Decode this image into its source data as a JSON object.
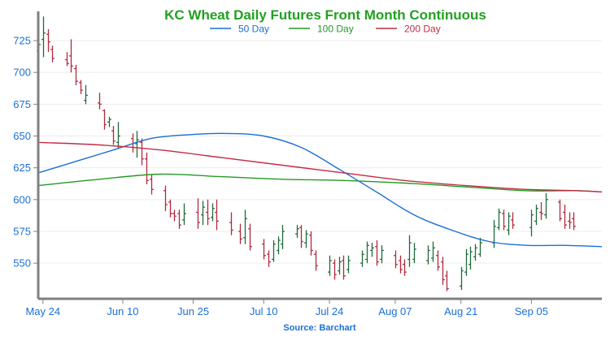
{
  "chart_data": {
    "type": "ohlc-line",
    "title": "KC Wheat Daily Futures Front Month Continuous",
    "source": "Source: Barchart",
    "title_color": "#22a022",
    "source_color": "#1a6fd6",
    "axis_label_color": "#1a6fd6",
    "up_color": "#1f6b3a",
    "down_color": "#b2283c",
    "ylim": [
      522,
      748
    ],
    "yticks": [
      550,
      575,
      600,
      625,
      650,
      675,
      700,
      725
    ],
    "x_range": [
      "2023-05-23",
      "2023-09-20"
    ],
    "xticks": [
      {
        "date": "2023-05-24",
        "label": "May 24"
      },
      {
        "date": "2023-06-10",
        "label": "Jun 10"
      },
      {
        "date": "2023-06-25",
        "label": "Jun 25"
      },
      {
        "date": "2023-07-10",
        "label": "Jul 10"
      },
      {
        "date": "2023-07-24",
        "label": "Jul 24"
      },
      {
        "date": "2023-08-07",
        "label": "Aug 07"
      },
      {
        "date": "2023-08-21",
        "label": "Aug 21"
      },
      {
        "date": "2023-09-05",
        "label": "Sep 05"
      }
    ],
    "legend": {
      "placement": "top-center"
    },
    "series": [
      {
        "name": "50 Day",
        "color": "#1a6fd6",
        "points": [
          [
            "2023-05-23",
            621
          ],
          [
            "2023-05-31",
            630
          ],
          [
            "2023-06-08",
            639
          ],
          [
            "2023-06-16",
            648
          ],
          [
            "2023-06-24",
            651
          ],
          [
            "2023-07-02",
            652
          ],
          [
            "2023-07-10",
            650
          ],
          [
            "2023-07-18",
            641
          ],
          [
            "2023-07-26",
            624
          ],
          [
            "2023-08-03",
            606
          ],
          [
            "2023-08-11",
            588
          ],
          [
            "2023-08-19",
            576
          ],
          [
            "2023-08-27",
            567
          ],
          [
            "2023-09-04",
            564
          ],
          [
            "2023-09-12",
            564
          ],
          [
            "2023-09-20",
            563
          ]
        ]
      },
      {
        "name": "100 Day",
        "color": "#239a23",
        "points": [
          [
            "2023-05-23",
            611
          ],
          [
            "2023-06-05",
            616
          ],
          [
            "2023-06-18",
            620
          ],
          [
            "2023-07-01",
            618
          ],
          [
            "2023-07-14",
            616
          ],
          [
            "2023-07-27",
            615
          ],
          [
            "2023-08-09",
            613
          ],
          [
            "2023-08-22",
            610
          ],
          [
            "2023-09-04",
            607
          ],
          [
            "2023-09-15",
            607
          ],
          [
            "2023-09-20",
            606
          ]
        ]
      },
      {
        "name": "200 Day",
        "color": "#c22b45",
        "points": [
          [
            "2023-05-23",
            645
          ],
          [
            "2023-06-05",
            643
          ],
          [
            "2023-06-18",
            639
          ],
          [
            "2023-07-01",
            633
          ],
          [
            "2023-07-14",
            627
          ],
          [
            "2023-07-27",
            621
          ],
          [
            "2023-08-09",
            615
          ],
          [
            "2023-08-22",
            611
          ],
          [
            "2023-09-04",
            608
          ],
          [
            "2023-09-15",
            607
          ],
          [
            "2023-09-20",
            606
          ]
        ]
      }
    ],
    "ohlc": [
      [
        "2023-05-23",
        708,
        727,
        717,
        722
      ],
      [
        "2023-05-24",
        712,
        744,
        726,
        731
      ],
      [
        "2023-05-25",
        716,
        734,
        730,
        724
      ],
      [
        "2023-05-26",
        708,
        721,
        718,
        711
      ],
      [
        "2023-05-29",
        705,
        716,
        710,
        707
      ],
      [
        "2023-05-30",
        700,
        726,
        713,
        705
      ],
      [
        "2023-05-31",
        690,
        706,
        703,
        693
      ],
      [
        "2023-06-01",
        683,
        694,
        692,
        686
      ],
      [
        "2023-06-02",
        675,
        690,
        678,
        682
      ],
      [
        "2023-06-05",
        671,
        684,
        676,
        675
      ],
      [
        "2023-06-06",
        655,
        671,
        670,
        659
      ],
      [
        "2023-06-07",
        657,
        665,
        661,
        663
      ],
      [
        "2023-06-08",
        643,
        658,
        654,
        646
      ],
      [
        "2023-06-09",
        640,
        661,
        645,
        650
      ],
      [
        "2023-06-12",
        637,
        652,
        648,
        641
      ],
      [
        "2023-06-13",
        633,
        654,
        644,
        647
      ],
      [
        "2023-06-14",
        627,
        648,
        645,
        632
      ],
      [
        "2023-06-15",
        612,
        637,
        632,
        615
      ],
      [
        "2023-06-16",
        604,
        620,
        616,
        608
      ],
      [
        "2023-06-19",
        591,
        611,
        607,
        596
      ],
      [
        "2023-06-20",
        586,
        600,
        598,
        589
      ],
      [
        "2023-06-21",
        583,
        592,
        589,
        587
      ],
      [
        "2023-06-22",
        577,
        592,
        589,
        580
      ],
      [
        "2023-06-23",
        580,
        597,
        584,
        589
      ],
      [
        "2023-06-26",
        577,
        601,
        590,
        582
      ],
      [
        "2023-06-27",
        580,
        599,
        588,
        594
      ],
      [
        "2023-06-28",
        580,
        600,
        590,
        585
      ],
      [
        "2023-06-29",
        583,
        597,
        586,
        593
      ],
      [
        "2023-06-30",
        576,
        600,
        590,
        583
      ],
      [
        "2023-07-03",
        572,
        590,
        582,
        576
      ],
      [
        "2023-07-05",
        565,
        581,
        575,
        569
      ],
      [
        "2023-07-06",
        565,
        592,
        570,
        585
      ],
      [
        "2023-07-07",
        560,
        581,
        577,
        563
      ],
      [
        "2023-07-10",
        553,
        569,
        565,
        556
      ],
      [
        "2023-07-11",
        547,
        560,
        557,
        551
      ],
      [
        "2023-07-12",
        551,
        568,
        553,
        565
      ],
      [
        "2023-07-13",
        557,
        571,
        560,
        568
      ],
      [
        "2023-07-14",
        561,
        580,
        565,
        575
      ],
      [
        "2023-07-17",
        570,
        580,
        573,
        577
      ],
      [
        "2023-07-18",
        562,
        580,
        578,
        567
      ],
      [
        "2023-07-19",
        562,
        576,
        566,
        573
      ],
      [
        "2023-07-20",
        556,
        575,
        572,
        560
      ],
      [
        "2023-07-21",
        544,
        560,
        557,
        548
      ],
      [
        "2023-07-24",
        540,
        556,
        543,
        552
      ],
      [
        "2023-07-25",
        537,
        553,
        550,
        541
      ],
      [
        "2023-07-26",
        541,
        555,
        544,
        551
      ],
      [
        "2023-07-27",
        537,
        556,
        552,
        540
      ],
      [
        "2023-07-28",
        542,
        556,
        545,
        552
      ],
      [
        "2023-07-31",
        547,
        560,
        550,
        557
      ],
      [
        "2023-08-01",
        550,
        567,
        553,
        564
      ],
      [
        "2023-08-02",
        555,
        566,
        560,
        562
      ],
      [
        "2023-08-03",
        548,
        568,
        563,
        551
      ],
      [
        "2023-08-04",
        550,
        564,
        553,
        560
      ],
      [
        "2023-08-07",
        546,
        560,
        556,
        549
      ],
      [
        "2023-08-08",
        542,
        556,
        552,
        545
      ],
      [
        "2023-08-09",
        540,
        553,
        549,
        543
      ],
      [
        "2023-08-10",
        547,
        572,
        553,
        566
      ],
      [
        "2023-08-11",
        550,
        566,
        553,
        561
      ],
      [
        "2023-08-14",
        549,
        564,
        552,
        560
      ],
      [
        "2023-08-15",
        551,
        567,
        554,
        562
      ],
      [
        "2023-08-16",
        544,
        560,
        556,
        547
      ],
      [
        "2023-08-17",
        533,
        555,
        551,
        537
      ],
      [
        "2023-08-18",
        528,
        544,
        540,
        530
      ],
      [
        "2023-08-21",
        529,
        547,
        532,
        544
      ],
      [
        "2023-08-22",
        540,
        561,
        543,
        557
      ],
      [
        "2023-08-23",
        545,
        563,
        549,
        559
      ],
      [
        "2023-08-24",
        552,
        565,
        555,
        562
      ],
      [
        "2023-08-25",
        555,
        570,
        557,
        566
      ],
      [
        "2023-08-28",
        562,
        584,
        566,
        579
      ],
      [
        "2023-08-29",
        576,
        593,
        578,
        590
      ],
      [
        "2023-08-30",
        576,
        592,
        589,
        579
      ],
      [
        "2023-08-31",
        572,
        590,
        576,
        587
      ],
      [
        "2023-09-01",
        577,
        590,
        584,
        580
      ],
      [
        "2023-09-05",
        571,
        592,
        578,
        588
      ],
      [
        "2023-09-06",
        580,
        596,
        583,
        593
      ],
      [
        "2023-09-07",
        584,
        598,
        590,
        589
      ],
      [
        "2023-09-08",
        585,
        605,
        588,
        600
      ],
      [
        "2023-09-11",
        583,
        600,
        598,
        585
      ],
      [
        "2023-09-12",
        577,
        596,
        590,
        580
      ],
      [
        "2023-09-13",
        577,
        590,
        583,
        582
      ],
      [
        "2023-09-14",
        576,
        590,
        585,
        579
      ]
    ]
  }
}
